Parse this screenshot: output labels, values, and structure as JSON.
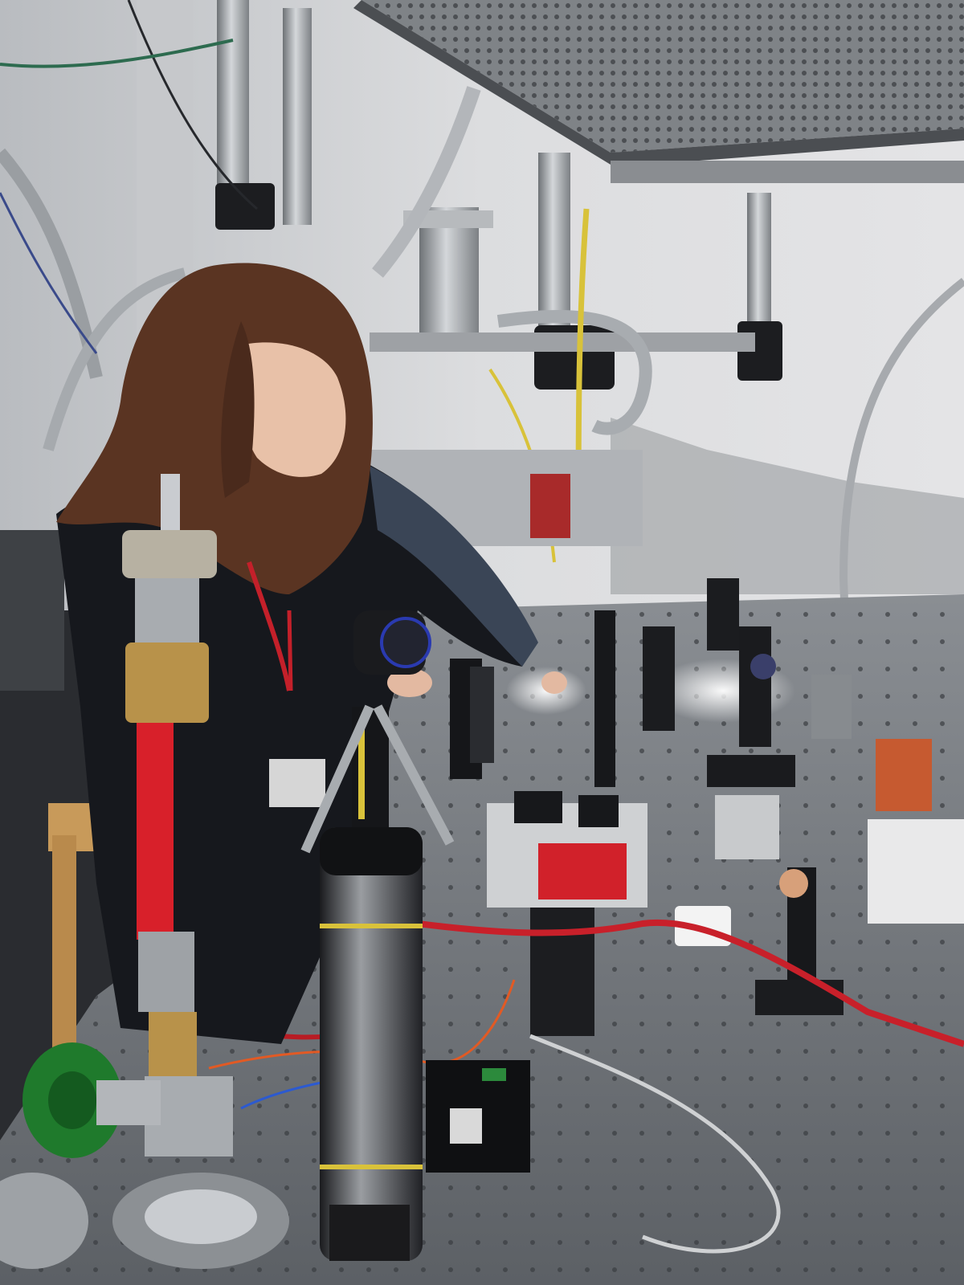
{
  "photo": {
    "subject": "lab",
    "colors": {
      "wall": "#d9dadc",
      "ceiling_grate": "#8d9094",
      "table": "#6f7378",
      "hair": "#5a3422",
      "clothing": "#16181d",
      "lanyard": "#c4202a",
      "red_tubing": "#c8202a",
      "yellow_fiber": "#d8c23a",
      "green_knob": "#1f7a2c",
      "brass": "#b8924a",
      "steel": "#a8acb0"
    }
  }
}
